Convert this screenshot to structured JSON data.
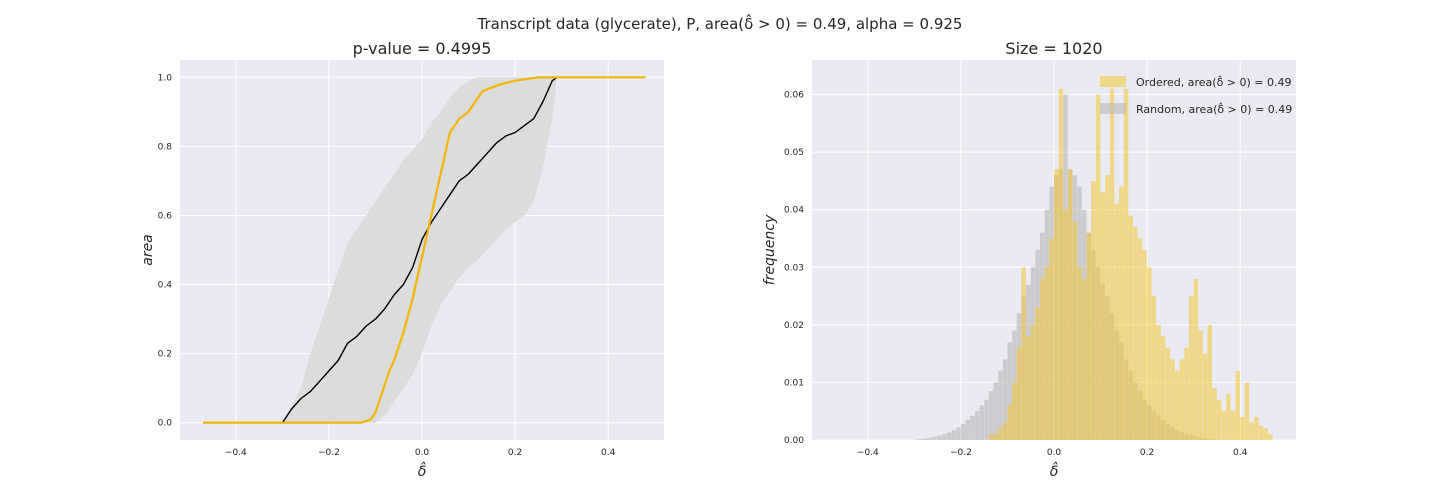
{
  "suptitle": "Transcript data (glycerate), P, area(δ̂ > 0) = 0.49, alpha = 0.925",
  "chart_data": [
    {
      "type": "line",
      "title": "p-value = 0.4995",
      "xlabel": "δ̂",
      "ylabel": "area",
      "xlim": [
        -0.52,
        0.52
      ],
      "ylim": [
        -0.05,
        1.05
      ],
      "xticks": [
        -0.4,
        -0.2,
        0.0,
        0.2,
        0.4
      ],
      "xticklabels": [
        "−0.4",
        "−0.2",
        "0.0",
        "0.2",
        "0.4"
      ],
      "yticks": [
        0.0,
        0.2,
        0.4,
        0.6,
        0.8,
        1.0
      ],
      "yticklabels": [
        "0.0",
        "0.2",
        "0.4",
        "0.6",
        "0.8",
        "1.0"
      ],
      "grid": true,
      "colors": {
        "ordered": "#f4b400",
        "random": "#000000",
        "band": "#dcdcdc"
      },
      "band": {
        "x": [
          -0.3,
          -0.28,
          -0.26,
          -0.24,
          -0.22,
          -0.2,
          -0.18,
          -0.16,
          -0.14,
          -0.12,
          -0.1,
          -0.08,
          -0.06,
          -0.04,
          -0.02,
          0.0,
          0.02,
          0.04,
          0.06,
          0.08,
          0.1,
          0.12,
          0.14,
          0.16,
          0.18,
          0.2,
          0.22,
          0.24,
          0.26,
          0.28,
          0.29
        ],
        "lower": [
          0.0,
          0.0,
          0.0,
          0.0,
          0.0,
          0.0,
          0.0,
          0.0,
          0.0,
          0.0,
          0.0,
          0.02,
          0.06,
          0.1,
          0.14,
          0.2,
          0.28,
          0.34,
          0.38,
          0.42,
          0.45,
          0.47,
          0.5,
          0.53,
          0.56,
          0.58,
          0.6,
          0.64,
          0.74,
          0.88,
          1.0
        ],
        "upper": [
          0.0,
          0.05,
          0.1,
          0.2,
          0.28,
          0.36,
          0.44,
          0.52,
          0.56,
          0.6,
          0.64,
          0.68,
          0.72,
          0.76,
          0.79,
          0.82,
          0.87,
          0.9,
          0.94,
          0.97,
          0.99,
          1.0,
          1.0,
          1.0,
          1.0,
          1.0,
          1.0,
          1.0,
          1.0,
          1.0,
          1.0
        ]
      },
      "series": [
        {
          "key": "random",
          "x": [
            -0.47,
            -0.3,
            -0.28,
            -0.26,
            -0.24,
            -0.22,
            -0.2,
            -0.18,
            -0.16,
            -0.14,
            -0.12,
            -0.1,
            -0.08,
            -0.06,
            -0.04,
            -0.02,
            0.0,
            0.02,
            0.04,
            0.06,
            0.08,
            0.1,
            0.12,
            0.14,
            0.16,
            0.18,
            0.2,
            0.22,
            0.24,
            0.26,
            0.28,
            0.29,
            0.48
          ],
          "y": [
            0.0,
            0.0,
            0.04,
            0.07,
            0.09,
            0.12,
            0.15,
            0.18,
            0.23,
            0.25,
            0.28,
            0.3,
            0.33,
            0.37,
            0.4,
            0.45,
            0.53,
            0.58,
            0.62,
            0.66,
            0.7,
            0.72,
            0.75,
            0.78,
            0.81,
            0.83,
            0.84,
            0.86,
            0.88,
            0.93,
            0.99,
            1.0,
            1.0
          ]
        },
        {
          "key": "ordered",
          "x": [
            -0.47,
            -0.13,
            -0.11,
            -0.1,
            -0.09,
            -0.08,
            -0.07,
            -0.06,
            -0.05,
            -0.04,
            -0.03,
            -0.02,
            -0.01,
            0.0,
            0.01,
            0.02,
            0.03,
            0.04,
            0.05,
            0.06,
            0.07,
            0.08,
            0.09,
            0.1,
            0.11,
            0.12,
            0.13,
            0.15,
            0.17,
            0.2,
            0.25,
            0.3,
            0.48
          ],
          "y": [
            0.0,
            0.0,
            0.01,
            0.03,
            0.07,
            0.11,
            0.15,
            0.18,
            0.22,
            0.26,
            0.31,
            0.36,
            0.42,
            0.48,
            0.54,
            0.6,
            0.66,
            0.72,
            0.78,
            0.84,
            0.86,
            0.88,
            0.89,
            0.9,
            0.92,
            0.94,
            0.96,
            0.97,
            0.98,
            0.99,
            1.0,
            1.0,
            1.0
          ]
        }
      ]
    },
    {
      "type": "bar",
      "title": "Size = 1020",
      "xlabel": "δ̂",
      "ylabel": "frequency",
      "xlim": [
        -0.52,
        0.52
      ],
      "ylim": [
        0.0,
        0.066
      ],
      "xticks": [
        -0.4,
        -0.2,
        0.0,
        0.2,
        0.4
      ],
      "xticklabels": [
        "−0.4",
        "−0.2",
        "0.0",
        "0.2",
        "0.4"
      ],
      "yticks": [
        0.0,
        0.01,
        0.02,
        0.03,
        0.04,
        0.05,
        0.06
      ],
      "yticklabels": [
        "0.00",
        "0.01",
        "0.02",
        "0.03",
        "0.04",
        "0.05",
        "0.06"
      ],
      "grid": true,
      "legend_position": "top-right",
      "bin_width": 0.01,
      "series": [
        {
          "name": "Random, area(δ̂ > 0) = 0.49",
          "color": "#b8b8b8",
          "bin_start": -0.48,
          "values": [
            0.0,
            0.0,
            0.0,
            0.0,
            0.0,
            0.0,
            0.0,
            0.0,
            0.0,
            0.0,
            0.0,
            0.0,
            0.0,
            0.0,
            0.0,
            0.0,
            0.0,
            0.0,
            0.0001,
            0.0002,
            0.0003,
            0.0004,
            0.0006,
            0.0008,
            0.001,
            0.0013,
            0.0017,
            0.0022,
            0.0028,
            0.0035,
            0.0042,
            0.005,
            0.006,
            0.007,
            0.0085,
            0.01,
            0.012,
            0.014,
            0.017,
            0.019,
            0.022,
            0.025,
            0.027,
            0.03,
            0.033,
            0.036,
            0.04,
            0.044,
            0.046,
            0.047,
            0.06,
            0.047,
            0.046,
            0.044,
            0.04,
            0.036,
            0.033,
            0.03,
            0.027,
            0.025,
            0.022,
            0.019,
            0.017,
            0.014,
            0.012,
            0.01,
            0.0085,
            0.007,
            0.006,
            0.005,
            0.0042,
            0.0035,
            0.0028,
            0.0022,
            0.0017,
            0.0013,
            0.001,
            0.0008,
            0.0006,
            0.0004,
            0.0003,
            0.0002,
            0.0001,
            0.0,
            0.0,
            0.0,
            0.0,
            0.0,
            0.0,
            0.0,
            0.0,
            0.0,
            0.0,
            0.0,
            0.0,
            0.0,
            0.0
          ]
        },
        {
          "name": "Ordered, area(δ̂ > 0) = 0.49",
          "color": "#f4c430",
          "bin_start": -0.14,
          "values": [
            0.001,
            0.001,
            0.002,
            0.003,
            0.006,
            0.01,
            0.016,
            0.03,
            0.018,
            0.02,
            0.023,
            0.028,
            0.03,
            0.035,
            0.047,
            0.061,
            0.04,
            0.047,
            0.038,
            0.03,
            0.028,
            0.036,
            0.045,
            0.06,
            0.043,
            0.046,
            0.061,
            0.041,
            0.044,
            0.061,
            0.039,
            0.037,
            0.035,
            0.033,
            0.03,
            0.025,
            0.02,
            0.018,
            0.016,
            0.014,
            0.012,
            0.014,
            0.016,
            0.025,
            0.028,
            0.019,
            0.015,
            0.02,
            0.009,
            0.007,
            0.005,
            0.008,
            0.005,
            0.012,
            0.004,
            0.01,
            0.003,
            0.004,
            0.0025,
            0.002,
            0.001
          ]
        }
      ]
    }
  ]
}
